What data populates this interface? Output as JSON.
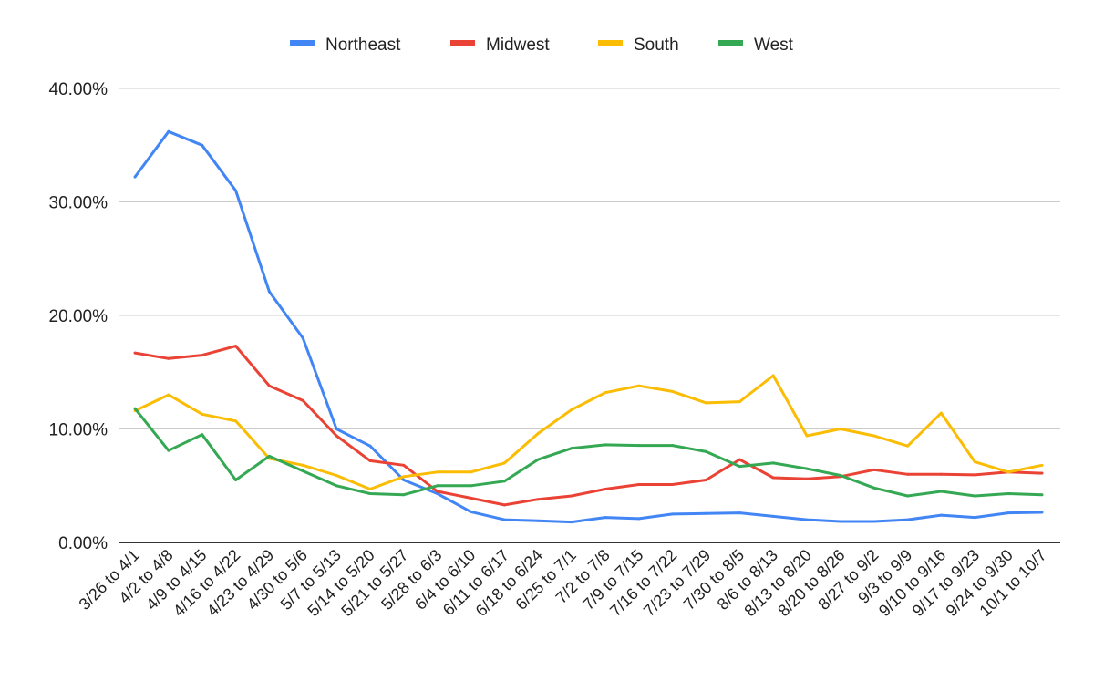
{
  "chart_data": {
    "type": "line",
    "title": "",
    "xlabel": "",
    "ylabel": "",
    "ylim": [
      0,
      40
    ],
    "y_ticks": [
      "0.00%",
      "10.00%",
      "20.00%",
      "30.00%",
      "40.00%"
    ],
    "grid": true,
    "legend_position": "top",
    "categories": [
      "3/26 to 4/1",
      "4/2 to 4/8",
      "4/9 to 4/15",
      "4/16 to 4/22",
      "4/23 to 4/29",
      "4/30 to 5/6",
      "5/7 to 5/13",
      "5/14 to 5/20",
      "5/21 to 5/27",
      "5/28 to 6/3",
      "6/4 to 6/10",
      "6/11 to 6/17",
      "6/18 to 6/24",
      "6/25 to 7/1",
      "7/2 to 7/8",
      "7/9 to 7/15",
      "7/16 to 7/22",
      "7/23 to 7/29",
      "7/30 to 8/5",
      "8/6 to 8/13",
      "8/13 to 8/20",
      "8/20 to 8/26",
      "8/27 to 9/2",
      "9/3 to 9/9",
      "9/10 to 9/16",
      "9/17 to 9/23",
      "9/24 to 9/30",
      "10/1 to 10/7"
    ],
    "series": [
      {
        "name": "Northeast",
        "color": "#4285F4",
        "values": [
          32.2,
          36.2,
          35.0,
          31.0,
          22.1,
          18.0,
          10.0,
          8.5,
          5.5,
          4.3,
          2.7,
          2.0,
          1.9,
          1.8,
          2.2,
          2.1,
          2.5,
          2.55,
          2.6,
          2.3,
          2.0,
          1.85,
          1.85,
          2.0,
          2.4,
          2.2,
          2.6,
          2.65
        ]
      },
      {
        "name": "Midwest",
        "color": "#EA4335",
        "values": [
          16.7,
          16.2,
          16.5,
          17.3,
          13.8,
          12.5,
          9.4,
          7.2,
          6.8,
          4.5,
          3.9,
          3.3,
          3.8,
          4.1,
          4.7,
          5.1,
          5.1,
          5.5,
          7.3,
          5.7,
          5.6,
          5.8,
          6.4,
          6.0,
          6.0,
          5.95,
          6.2,
          6.1
        ]
      },
      {
        "name": "South",
        "color": "#FBBC04",
        "values": [
          11.6,
          13.0,
          11.3,
          10.7,
          7.4,
          6.8,
          5.9,
          4.7,
          5.8,
          6.2,
          6.2,
          7.0,
          9.6,
          11.7,
          13.2,
          13.8,
          13.3,
          12.3,
          12.4,
          14.7,
          9.4,
          10.0,
          9.4,
          8.5,
          11.4,
          7.1,
          6.2,
          6.8
        ]
      },
      {
        "name": "West",
        "color": "#34A853",
        "values": [
          11.8,
          8.1,
          9.5,
          5.5,
          7.6,
          6.3,
          5.0,
          4.3,
          4.2,
          5.0,
          5.0,
          5.4,
          7.3,
          8.3,
          8.6,
          8.55,
          8.55,
          8.0,
          6.7,
          7.0,
          6.5,
          5.9,
          4.8,
          4.1,
          4.5,
          4.1,
          4.3,
          4.2
        ]
      }
    ]
  }
}
